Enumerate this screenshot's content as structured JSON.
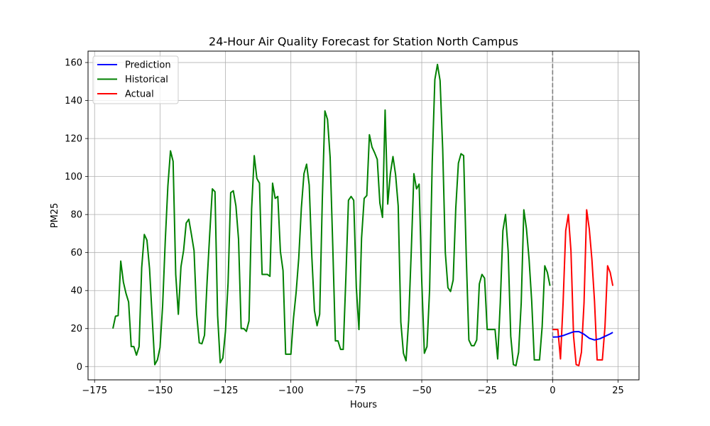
{
  "chart_data": {
    "type": "line",
    "title": "24-Hour Air Quality Forecast for Station North Campus",
    "xlabel": "Hours",
    "ylabel": "PM25",
    "xlim": [
      -177.5,
      33
    ],
    "ylim": [
      -7,
      166
    ],
    "xticks": [
      -175,
      -150,
      -125,
      -100,
      -75,
      -50,
      -25,
      0,
      25
    ],
    "xtick_labels": [
      "−175",
      "−150",
      "−125",
      "−100",
      "−75",
      "−50",
      "−25",
      "0",
      "25"
    ],
    "yticks": [
      0,
      20,
      40,
      60,
      80,
      100,
      120,
      140,
      160
    ],
    "ytick_labels": [
      "0",
      "20",
      "40",
      "60",
      "80",
      "100",
      "120",
      "140",
      "160"
    ],
    "grid": true,
    "legend_position": "top-left",
    "vline": {
      "x": 0,
      "color": "#808080",
      "style": "dashed"
    },
    "series": [
      {
        "name": "Prediction",
        "color": "#0000ff",
        "x": [
          0,
          2,
          4,
          6,
          8,
          10,
          12,
          14,
          16,
          18,
          20,
          22,
          23
        ],
        "y": [
          15.5,
          15.6,
          16.3,
          17.3,
          18.3,
          18.4,
          17.0,
          14.9,
          14.0,
          14.6,
          15.9,
          17.2,
          18.0
        ]
      },
      {
        "name": "Historical",
        "color": "#008000",
        "x": [
          -168,
          -167,
          -166,
          -165,
          -164,
          -163,
          -162,
          -161,
          -160,
          -159,
          -158,
          -157,
          -156,
          -155,
          -154,
          -153,
          -152,
          -151,
          -150,
          -149,
          -148,
          -147,
          -146,
          -145,
          -144,
          -143,
          -142,
          -141,
          -140,
          -139,
          -138,
          -137,
          -136,
          -135,
          -134,
          -133,
          -132,
          -131,
          -130,
          -129,
          -128,
          -127,
          -126,
          -125,
          -124,
          -123,
          -122,
          -121,
          -120,
          -119,
          -118,
          -117,
          -116,
          -115,
          -114,
          -113,
          -112,
          -111,
          -110,
          -109,
          -108,
          -107,
          -106,
          -105,
          -104,
          -103,
          -102,
          -101,
          -100,
          -99,
          -98,
          -97,
          -96,
          -95,
          -94,
          -93,
          -92,
          -91,
          -90,
          -89,
          -88,
          -87,
          -86,
          -85,
          -84,
          -83,
          -82,
          -81,
          -80,
          -79,
          -78,
          -77,
          -76,
          -75,
          -74,
          -73,
          -72,
          -71,
          -70,
          -69,
          -68,
          -67,
          -66,
          -65,
          -64,
          -63,
          -62,
          -61,
          -60,
          -59,
          -58,
          -57,
          -56,
          -55,
          -54,
          -53,
          -52,
          -51,
          -50,
          -49,
          -48,
          -47,
          -46,
          -45,
          -44,
          -43,
          -42,
          -41,
          -40,
          -39,
          -38,
          -37,
          -36,
          -35,
          -34,
          -33,
          -32,
          -31,
          -30,
          -29,
          -28,
          -27,
          -26,
          -25,
          -24,
          -23,
          -22,
          -21,
          -20,
          -19,
          -18,
          -17,
          -16,
          -15,
          -14,
          -13,
          -12,
          -11,
          -10,
          -9,
          -8,
          -7,
          -6,
          -5,
          -4,
          -3,
          -2,
          -1
        ],
        "y": [
          20,
          26.5,
          26.8,
          55.5,
          44.5,
          38.5,
          34,
          10.5,
          10.5,
          6,
          10.5,
          52,
          69.5,
          66.5,
          51.5,
          26,
          1,
          3.5,
          10,
          32,
          66,
          95,
          113.5,
          108,
          48.5,
          27.5,
          52.5,
          61,
          75.5,
          77.5,
          69.5,
          61,
          27.5,
          12.5,
          12,
          16.5,
          45,
          70,
          93.5,
          92,
          27,
          2,
          4.5,
          18.5,
          44,
          91.5,
          92.5,
          84.5,
          67,
          20,
          20,
          18.5,
          24,
          83,
          111,
          99,
          96.5,
          48.5,
          48.5,
          48.5,
          47.5,
          96.5,
          88.5,
          89.5,
          60.5,
          50.5,
          6.5,
          6.5,
          6.5,
          25.5,
          39,
          57,
          83.5,
          101.5,
          106.5,
          95.5,
          58,
          29.5,
          21.5,
          27.5,
          87.5,
          134.5,
          130,
          110,
          63.5,
          13.5,
          13.5,
          9,
          9,
          46.5,
          87.5,
          89.5,
          87.5,
          41.5,
          19.5,
          67.5,
          88.5,
          90,
          122,
          115.5,
          112.5,
          109,
          86,
          78.5,
          135,
          85.5,
          101.5,
          110.5,
          101,
          84.5,
          23.5,
          7,
          3,
          24.5,
          61,
          101.5,
          93.5,
          96,
          45,
          7,
          10.5,
          40.5,
          107.5,
          151,
          159,
          150.5,
          114.5,
          60,
          41.5,
          39.5,
          45.5,
          83.5,
          107,
          112,
          111,
          58,
          14,
          11,
          11,
          14,
          43.5,
          48.5,
          46.5,
          19.5,
          19.5,
          19.5,
          19.5,
          4,
          33.5,
          71.5,
          80,
          61,
          16,
          1,
          0.5,
          7.5,
          33.5,
          82.5,
          72.5,
          56.5,
          34.5,
          3.5,
          3.5,
          3.5,
          21,
          53,
          49.5,
          42.5
        ]
      },
      {
        "name": "Actual",
        "color": "#ff0000",
        "x": [
          0,
          1,
          2,
          3,
          4,
          5,
          6,
          7,
          8,
          9,
          10,
          11,
          12,
          13,
          14,
          15,
          16,
          17,
          18,
          19,
          20,
          21,
          22,
          23
        ],
        "y": [
          19.5,
          19.5,
          19.5,
          4,
          33.5,
          71.5,
          80,
          61,
          16,
          1,
          0.5,
          7.5,
          33.5,
          82.5,
          72.5,
          56.5,
          34.5,
          3.5,
          3.5,
          3.5,
          21,
          53,
          49.5,
          42.5
        ]
      }
    ]
  }
}
